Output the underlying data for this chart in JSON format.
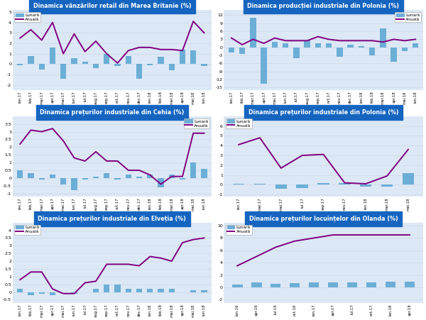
{
  "charts": [
    {
      "title": "Dinamica vânzărilor retail din Marea Britanie (%)",
      "labels": [
        "ian.17",
        "feb.17",
        "mar.17",
        "apr.17",
        "mai.17",
        "iun.17",
        "iul.17",
        "aug.17",
        "sep.17",
        "oct.17",
        "nov.17",
        "dec.17",
        "ian.18",
        "feb.18",
        "mar.18",
        "apr.18",
        "mai.18",
        "iun.18"
      ],
      "bar": [
        -0.1,
        0.8,
        -0.5,
        1.6,
        -1.4,
        0.6,
        0.2,
        -0.4,
        1.0,
        -0.2,
        0.8,
        -1.4,
        -0.1,
        0.7,
        -0.6,
        1.4,
        1.3,
        -0.2
      ],
      "line": [
        2.5,
        3.3,
        2.3,
        4.0,
        1.0,
        2.9,
        1.2,
        2.2,
        1.0,
        0.1,
        1.3,
        1.6,
        1.6,
        1.4,
        1.4,
        1.3,
        4.1,
        3.0
      ],
      "ylim": [
        -2.5,
        5.2
      ],
      "yticks": [
        -2.0,
        -1.0,
        0.0,
        1.0,
        2.0,
        3.0,
        4.0,
        5.0
      ],
      "legend_loc": "upper left"
    },
    {
      "title": "Dinamica producției industriale din Polonia (%)",
      "labels": [
        "ian.17",
        "feb.17",
        "mar.17",
        "apr.17",
        "mai.17",
        "iun.17",
        "iul.17",
        "aug.17",
        "sep.17",
        "oct.17",
        "nov.17",
        "dec.17",
        "ian.18",
        "feb.18",
        "mar.18",
        "apr.18",
        "mai.18",
        "iun.18"
      ],
      "bar": [
        -2.0,
        -2.5,
        11.0,
        -13.5,
        2.0,
        1.5,
        -4.0,
        2.5,
        1.5,
        1.5,
        -3.5,
        1.0,
        0.5,
        -3.0,
        7.0,
        -5.5,
        -1.5,
        1.5
      ],
      "line": [
        3.5,
        1.0,
        3.0,
        1.5,
        3.5,
        2.5,
        2.5,
        2.5,
        4.0,
        3.0,
        2.5,
        2.5,
        2.5,
        2.5,
        2.0,
        3.0,
        2.5,
        3.0
      ],
      "ylim": [
        -16,
        14
      ],
      "yticks": [
        -15,
        -12,
        -9,
        -6,
        -3,
        0,
        3,
        6,
        9,
        12
      ],
      "legend_loc": "upper right"
    },
    {
      "title": "Dinamica prețurilor industriale din Cehia (%)",
      "labels": [
        "ian.17",
        "feb.17",
        "mar.17",
        "apr.17",
        "mai.17",
        "iun.17",
        "iul.17",
        "aug.17",
        "sep.17",
        "oct.17",
        "nov.17",
        "dec.17",
        "ian.18",
        "feb.18",
        "mar.18",
        "apr.18",
        "mai.18",
        "iun.18"
      ],
      "bar": [
        0.5,
        0.3,
        -0.1,
        0.2,
        -0.4,
        -0.8,
        -0.1,
        0.1,
        0.3,
        -0.1,
        0.2,
        0.1,
        0.2,
        -0.6,
        0.2,
        -0.1,
        1.0,
        0.6
      ],
      "line": [
        2.2,
        3.1,
        3.0,
        3.2,
        2.4,
        1.3,
        1.1,
        1.7,
        1.1,
        1.1,
        0.5,
        0.5,
        0.2,
        -0.4,
        0.1,
        0.1,
        2.9,
        2.9
      ],
      "ylim": [
        -1.2,
        4.0
      ],
      "yticks": [
        -1.0,
        -0.5,
        0.0,
        0.5,
        1.0,
        1.5,
        2.0,
        2.5,
        3.0,
        3.5
      ],
      "legend_loc": "upper right"
    },
    {
      "title": "Dinamica prețurilor industriale din Polonia (%)",
      "labels": [
        "ian.17",
        "mar.17",
        "mai.17",
        "iul.17",
        "sep.17",
        "nov.17",
        "ian.18",
        "mar.18",
        "mai.18"
      ],
      "bar": [
        0.1,
        0.1,
        -0.4,
        -0.3,
        0.2,
        0.2,
        -0.2,
        -0.2,
        1.2
      ],
      "line": [
        4.1,
        4.8,
        1.7,
        3.0,
        3.1,
        0.2,
        0.1,
        0.9,
        3.6
      ],
      "ylim": [
        -1.2,
        7.0
      ],
      "yticks": [
        -1.0,
        0.0,
        1.0,
        2.0,
        3.0,
        4.0,
        5.0,
        6.0
      ],
      "legend_loc": "upper left"
    },
    {
      "title": "Dinamica prețurilor industriale din Elveția (%)",
      "labels": [
        "ian.17",
        "feb.17",
        "mar.17",
        "apr.17",
        "mai.17",
        "iun.17",
        "iul.17",
        "aug.17",
        "sep.17",
        "oct.17",
        "nov.17",
        "dec.17",
        "ian.18",
        "feb.18",
        "mar.18",
        "apr.18",
        "mai.18",
        "iun.18"
      ],
      "bar": [
        0.2,
        -0.2,
        -0.1,
        -0.2,
        0.0,
        -0.1,
        0.0,
        0.2,
        0.5,
        0.5,
        0.2,
        0.2,
        0.2,
        0.2,
        0.2,
        0.0,
        0.1,
        0.1
      ],
      "line": [
        0.8,
        1.3,
        1.3,
        0.2,
        -0.1,
        -0.1,
        0.6,
        0.7,
        1.8,
        1.8,
        1.8,
        1.7,
        2.3,
        2.2,
        2.0,
        3.2,
        3.4,
        3.5
      ],
      "ylim": [
        -0.7,
        4.5
      ],
      "yticks": [
        -0.5,
        0.0,
        0.5,
        1.0,
        1.5,
        2.0,
        2.5,
        3.0,
        3.5,
        4.0
      ],
      "legend_loc": "upper left"
    },
    {
      "title": "Dinamica prețurilor locuințelor din Olanda (%)",
      "labels": [
        "ian.16",
        "apr.16",
        "iul.16",
        "oct.16",
        "ian.17",
        "apr.17",
        "iul.17",
        "oct.17",
        "ian.18",
        "apr.18"
      ],
      "bar": [
        0.5,
        0.8,
        0.6,
        0.7,
        0.8,
        0.8,
        0.8,
        0.8,
        0.9,
        0.9
      ],
      "line": [
        3.5,
        5.0,
        6.5,
        7.5,
        8.0,
        8.5,
        8.5,
        8.5,
        8.5,
        8.5
      ],
      "ylim": [
        -2.5,
        10.5
      ],
      "yticks": [
        -2,
        0,
        2,
        4,
        6,
        8,
        10
      ],
      "legend_loc": "upper left"
    }
  ],
  "bar_color": "#6baed6",
  "line_color": "#800080",
  "title_bg": "#1565c0",
  "title_fg": "white",
  "grid_color": "#d0d8e8",
  "bg_color": "#dce8f5"
}
